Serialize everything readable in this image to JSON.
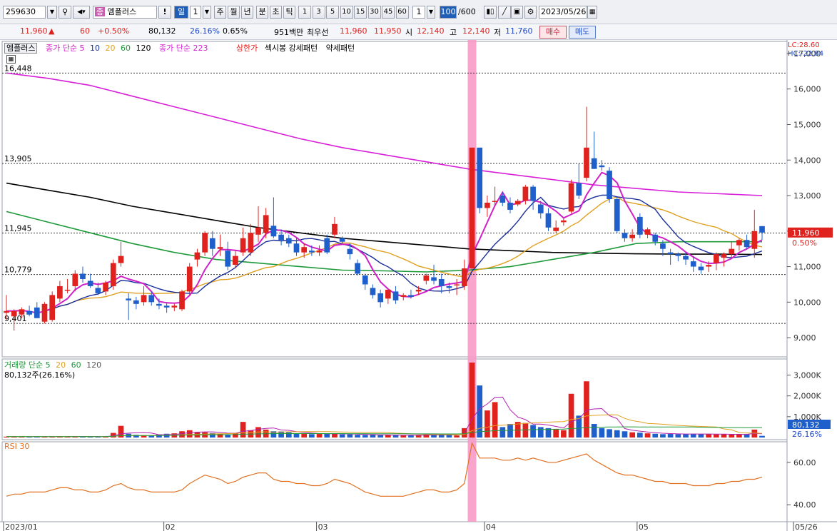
{
  "toolbar": {
    "code": "259630",
    "stock_badge": "종",
    "stock_name": "엠플러스",
    "exclaim": "!",
    "period_day": "일",
    "period_num": "1",
    "period_week": "주",
    "period_month": "월",
    "period_year": "년",
    "period_minute": "분",
    "period_second": "초",
    "period_tick": "틱",
    "intervals": [
      "1",
      "3",
      "5",
      "10",
      "15",
      "30",
      "45",
      "60"
    ],
    "interval_value": "1",
    "count": "100",
    "count_total": "/600",
    "date": "2023/05/26"
  },
  "quote": {
    "price": "11,960",
    "arrow": "▲",
    "change": "60",
    "change_pct": "+0.50%",
    "volume": "80,132",
    "volume_ratio": "26.16%",
    "turnover_pct": "0.65%",
    "amount": "951백만",
    "ask_label": "최우선",
    "ask": "11,960",
    "bid": "11,950",
    "open_label": "시",
    "open": "12,140",
    "high_label": "고",
    "high": "12,140",
    "low_label": "저",
    "low": "11,760",
    "buy_label": "매수",
    "sell_label": "매도"
  },
  "price_panel": {
    "name_label": "엠플러스",
    "ma_label": "종가 단순 5",
    "ma_periods": [
      "10",
      "20",
      "60",
      "120"
    ],
    "ma223_label": "종가 단순 223",
    "upper_limit_label": "상한가",
    "pattern_label": "섹시봉 강세패턴",
    "weak_label": "약세패턴",
    "lc_label": "LC:28.60",
    "hc_label": "HC:-22.84",
    "y_ticks": [
      "17,000",
      "16,000",
      "15,000",
      "14,000",
      "13,000",
      "12,000",
      "11,000",
      "10,000",
      "9,000"
    ],
    "ref_lines": [
      "16,448",
      "13,905",
      "11,945",
      "10,779",
      "9,401"
    ],
    "current_price": "11,960",
    "current_pct": "0.50%"
  },
  "volume_panel": {
    "label": "거래량 단순 5",
    "ma_periods": [
      "20",
      "60",
      "120"
    ],
    "summary": "80,132주(26.16%)",
    "y_ticks": [
      "3,000K",
      "2,000K",
      "1,000K"
    ],
    "current": "80,132",
    "current_pct": "26.16%"
  },
  "rsi_panel": {
    "label": "RSI 30",
    "y_ticks": [
      "60.00",
      "40.00"
    ]
  },
  "x_axis": {
    "labels": [
      "2023/01",
      "02",
      "03",
      "04",
      "05",
      "05/26"
    ]
  },
  "colors": {
    "up": "#e0221f",
    "down": "#1f5fcc",
    "ma5": "#d020c8",
    "ma10": "#1a2f9a",
    "ma20": "#e0a020",
    "ma60": "#1e9a3a",
    "ma120": "#000000",
    "ma223": "#d820d8",
    "highlight": "#f79ac8",
    "rsi": "#e07020"
  },
  "chart_data": {
    "type": "candlestick",
    "x_range": [
      "2023/01",
      "2023/05/26"
    ],
    "price_ylim": [
      8500,
      17300
    ],
    "candles": [
      {
        "o": 9700,
        "h": 10200,
        "l": 9500,
        "c": 9750
      },
      {
        "o": 9600,
        "h": 9800,
        "l": 9200,
        "c": 9750
      },
      {
        "o": 9650,
        "h": 9850,
        "l": 9550,
        "c": 9800
      },
      {
        "o": 9750,
        "h": 9900,
        "l": 9600,
        "c": 9650
      },
      {
        "o": 9850,
        "h": 10000,
        "l": 9550,
        "c": 9550
      },
      {
        "o": 9450,
        "h": 10000,
        "l": 9400,
        "c": 9950
      },
      {
        "o": 9500,
        "h": 10300,
        "l": 9450,
        "c": 10200
      },
      {
        "o": 10100,
        "h": 10600,
        "l": 10000,
        "c": 10450
      },
      {
        "o": 10350,
        "h": 10650,
        "l": 10250,
        "c": 10350
      },
      {
        "o": 10450,
        "h": 10900,
        "l": 10300,
        "c": 10800
      },
      {
        "o": 10800,
        "h": 11000,
        "l": 10550,
        "c": 10650
      },
      {
        "o": 10600,
        "h": 10800,
        "l": 10400,
        "c": 10450
      },
      {
        "o": 10400,
        "h": 10550,
        "l": 10200,
        "c": 10250
      },
      {
        "o": 10300,
        "h": 10600,
        "l": 10200,
        "c": 10550
      },
      {
        "o": 10450,
        "h": 11200,
        "l": 10350,
        "c": 11100
      },
      {
        "o": 11100,
        "h": 11700,
        "l": 11000,
        "c": 11300
      },
      {
        "o": 10100,
        "h": 10250,
        "l": 9500,
        "c": 10050
      },
      {
        "o": 10050,
        "h": 10150,
        "l": 9800,
        "c": 9950
      },
      {
        "o": 10000,
        "h": 10450,
        "l": 9900,
        "c": 10200
      },
      {
        "o": 10200,
        "h": 10300,
        "l": 9900,
        "c": 10000
      },
      {
        "o": 9950,
        "h": 10100,
        "l": 9800,
        "c": 9900
      },
      {
        "o": 9900,
        "h": 10000,
        "l": 9700,
        "c": 9850
      },
      {
        "o": 9850,
        "h": 9950,
        "l": 9750,
        "c": 9900
      },
      {
        "o": 9800,
        "h": 10350,
        "l": 9750,
        "c": 10300
      },
      {
        "o": 10300,
        "h": 11100,
        "l": 10200,
        "c": 11000
      },
      {
        "o": 11200,
        "h": 11500,
        "l": 11000,
        "c": 11400
      },
      {
        "o": 11400,
        "h": 12000,
        "l": 11300,
        "c": 11950
      },
      {
        "o": 11800,
        "h": 12000,
        "l": 11300,
        "c": 11500
      },
      {
        "o": 11500,
        "h": 11900,
        "l": 11300,
        "c": 11550
      },
      {
        "o": 11450,
        "h": 11700,
        "l": 10900,
        "c": 11000
      },
      {
        "o": 11050,
        "h": 11450,
        "l": 10950,
        "c": 11300
      },
      {
        "o": 11400,
        "h": 12100,
        "l": 11300,
        "c": 11800
      },
      {
        "o": 11400,
        "h": 12200,
        "l": 11300,
        "c": 11950
      },
      {
        "o": 11900,
        "h": 12700,
        "l": 11700,
        "c": 12100
      },
      {
        "o": 11950,
        "h": 12650,
        "l": 11800,
        "c": 12450
      },
      {
        "o": 12150,
        "h": 12950,
        "l": 11800,
        "c": 11850
      },
      {
        "o": 11900,
        "h": 12050,
        "l": 11600,
        "c": 11750
      },
      {
        "o": 11800,
        "h": 11900,
        "l": 11550,
        "c": 11650
      },
      {
        "o": 11650,
        "h": 11800,
        "l": 11300,
        "c": 11400
      },
      {
        "o": 11400,
        "h": 11650,
        "l": 11250,
        "c": 11550
      },
      {
        "o": 11450,
        "h": 11600,
        "l": 11300,
        "c": 11400
      },
      {
        "o": 11400,
        "h": 11600,
        "l": 11300,
        "c": 11450
      },
      {
        "o": 11800,
        "h": 11900,
        "l": 11350,
        "c": 11400
      },
      {
        "o": 11900,
        "h": 12400,
        "l": 11800,
        "c": 12200
      },
      {
        "o": 11800,
        "h": 11850,
        "l": 11650,
        "c": 11700
      },
      {
        "o": 11500,
        "h": 11650,
        "l": 11200,
        "c": 11350
      },
      {
        "o": 11100,
        "h": 11200,
        "l": 10750,
        "c": 10800
      },
      {
        "o": 10750,
        "h": 10800,
        "l": 10350,
        "c": 10500
      },
      {
        "o": 10400,
        "h": 10500,
        "l": 10100,
        "c": 10200
      },
      {
        "o": 10250,
        "h": 10350,
        "l": 9850,
        "c": 10000
      },
      {
        "o": 10100,
        "h": 10350,
        "l": 9950,
        "c": 10350
      },
      {
        "o": 10300,
        "h": 10450,
        "l": 9950,
        "c": 10050
      },
      {
        "o": 10150,
        "h": 10250,
        "l": 10050,
        "c": 10200
      },
      {
        "o": 10200,
        "h": 10350,
        "l": 10100,
        "c": 10150
      },
      {
        "o": 10300,
        "h": 10450,
        "l": 10200,
        "c": 10350
      },
      {
        "o": 10600,
        "h": 10800,
        "l": 10500,
        "c": 10750
      },
      {
        "o": 10700,
        "h": 11050,
        "l": 10500,
        "c": 10600
      },
      {
        "o": 10650,
        "h": 10800,
        "l": 10250,
        "c": 10450
      },
      {
        "o": 10450,
        "h": 10550,
        "l": 10250,
        "c": 10400
      },
      {
        "o": 10500,
        "h": 10650,
        "l": 10200,
        "c": 10500
      },
      {
        "o": 10450,
        "h": 11200,
        "l": 10350,
        "c": 10950
      },
      {
        "o": 10950,
        "h": 14350,
        "l": 10900,
        "c": 14350
      },
      {
        "o": 14350,
        "h": 14350,
        "l": 12500,
        "c": 12650
      },
      {
        "o": 12650,
        "h": 13000,
        "l": 12400,
        "c": 12800
      },
      {
        "o": 12850,
        "h": 13250,
        "l": 12700,
        "c": 12850
      },
      {
        "o": 13000,
        "h": 13100,
        "l": 12700,
        "c": 12800
      },
      {
        "o": 12800,
        "h": 12950,
        "l": 12500,
        "c": 12600
      },
      {
        "o": 12750,
        "h": 12900,
        "l": 12700,
        "c": 12850
      },
      {
        "o": 12850,
        "h": 13300,
        "l": 12750,
        "c": 13250
      },
      {
        "o": 13250,
        "h": 13300,
        "l": 12600,
        "c": 12850
      },
      {
        "o": 12750,
        "h": 12850,
        "l": 12350,
        "c": 12500
      },
      {
        "o": 12500,
        "h": 12650,
        "l": 12000,
        "c": 12100
      },
      {
        "o": 12000,
        "h": 12300,
        "l": 11950,
        "c": 12100
      },
      {
        "o": 12250,
        "h": 12350,
        "l": 12150,
        "c": 12300
      },
      {
        "o": 12550,
        "h": 13450,
        "l": 12500,
        "c": 13350
      },
      {
        "o": 13350,
        "h": 13900,
        "l": 12900,
        "c": 13000
      },
      {
        "o": 13500,
        "h": 15500,
        "l": 13400,
        "c": 14350
      },
      {
        "o": 14050,
        "h": 14800,
        "l": 13750,
        "c": 13750
      },
      {
        "o": 13850,
        "h": 14000,
        "l": 13700,
        "c": 13800
      },
      {
        "o": 13700,
        "h": 13800,
        "l": 12800,
        "c": 12900
      },
      {
        "o": 12900,
        "h": 12950,
        "l": 11950,
        "c": 12000
      },
      {
        "o": 11950,
        "h": 12050,
        "l": 11700,
        "c": 11800
      },
      {
        "o": 11800,
        "h": 12050,
        "l": 11700,
        "c": 11900
      },
      {
        "o": 12400,
        "h": 12500,
        "l": 11800,
        "c": 11900
      },
      {
        "o": 11900,
        "h": 12100,
        "l": 11800,
        "c": 12050
      },
      {
        "o": 11900,
        "h": 11950,
        "l": 11600,
        "c": 11700
      },
      {
        "o": 11650,
        "h": 11750,
        "l": 11300,
        "c": 11500
      },
      {
        "o": 11400,
        "h": 11500,
        "l": 11050,
        "c": 11350
      },
      {
        "o": 11350,
        "h": 11400,
        "l": 11150,
        "c": 11300
      },
      {
        "o": 11300,
        "h": 11400,
        "l": 11050,
        "c": 11200
      },
      {
        "o": 11150,
        "h": 11300,
        "l": 10850,
        "c": 11000
      },
      {
        "o": 11000,
        "h": 11100,
        "l": 10800,
        "c": 10900
      },
      {
        "o": 11000,
        "h": 11150,
        "l": 10850,
        "c": 11050
      },
      {
        "o": 11100,
        "h": 11400,
        "l": 10900,
        "c": 11350
      },
      {
        "o": 11250,
        "h": 11400,
        "l": 11000,
        "c": 11350
      },
      {
        "o": 11350,
        "h": 11700,
        "l": 11250,
        "c": 11500
      },
      {
        "o": 11600,
        "h": 11800,
        "l": 11450,
        "c": 11750
      },
      {
        "o": 11750,
        "h": 11900,
        "l": 11500,
        "c": 11550
      },
      {
        "o": 11500,
        "h": 12600,
        "l": 11250,
        "c": 12000
      },
      {
        "o": 12140,
        "h": 12140,
        "l": 11760,
        "c": 11960
      }
    ],
    "ma223": [
      16450,
      16300,
      16100,
      15800,
      15500,
      15200,
      14900,
      14600,
      14350,
      14150,
      13950,
      13750,
      13600,
      13450,
      13300,
      13200,
      13100,
      13050,
      13000
    ],
    "ma120": [
      13350,
      13150,
      12950,
      12700,
      12500,
      12300,
      12100,
      11950,
      11800,
      11700,
      11600,
      11500,
      11450,
      11400,
      11380,
      11360,
      11350,
      11350,
      11340
    ],
    "ma60": [
      12550,
      12250,
      11950,
      11650,
      11400,
      11200,
      11100,
      11000,
      10900,
      10880,
      10850,
      10900,
      11000,
      11200,
      11400,
      11650,
      11700,
      11700,
      11700
    ],
    "volume_bars_k": [
      40,
      40,
      40,
      45,
      40,
      40,
      45,
      60,
      50,
      40,
      55,
      50,
      45,
      40,
      220,
      560,
      180,
      130,
      110,
      100,
      150,
      180,
      200,
      300,
      350,
      250,
      250,
      210,
      180,
      150,
      220,
      750,
      350,
      500,
      380,
      300,
      290,
      250,
      200,
      170,
      160,
      170,
      200,
      190,
      150,
      150,
      130,
      120,
      130,
      110,
      120,
      110,
      100,
      110,
      120,
      150,
      140,
      120,
      120,
      100,
      450,
      3700,
      2500,
      1300,
      1700,
      500,
      650,
      750,
      700,
      600,
      500,
      450,
      400,
      350,
      2100,
      1050,
      2700,
      650,
      450,
      400,
      350,
      300,
      250,
      230,
      200,
      180,
      160,
      170,
      160,
      170,
      180,
      160,
      170,
      150,
      160,
      140,
      150,
      160,
      380,
      80
    ],
    "volume_ylim_k": [
      0,
      3600
    ],
    "rsi": [
      44,
      45,
      45,
      46,
      46,
      46,
      47,
      48,
      48,
      47,
      47,
      46,
      46,
      47,
      49,
      50,
      48,
      47,
      47,
      46,
      46,
      46,
      46,
      47,
      50,
      52,
      54,
      53,
      52,
      50,
      51,
      53,
      54,
      55,
      55,
      52,
      51,
      51,
      50,
      50,
      49,
      49,
      50,
      52,
      51,
      50,
      48,
      46,
      45,
      44,
      44,
      44,
      44,
      45,
      46,
      47,
      47,
      46,
      46,
      47,
      50,
      69,
      62,
      62,
      62,
      61,
      61,
      62,
      61,
      62,
      61,
      60,
      60,
      61,
      62,
      63,
      64,
      61,
      59,
      57,
      55,
      54,
      54,
      53,
      52,
      51,
      51,
      50,
      50,
      50,
      49,
      49,
      49,
      50,
      50,
      51,
      51,
      52,
      52,
      53
    ],
    "rsi_ylim": [
      33,
      68
    ],
    "upper_limit_day_index": 61
  }
}
